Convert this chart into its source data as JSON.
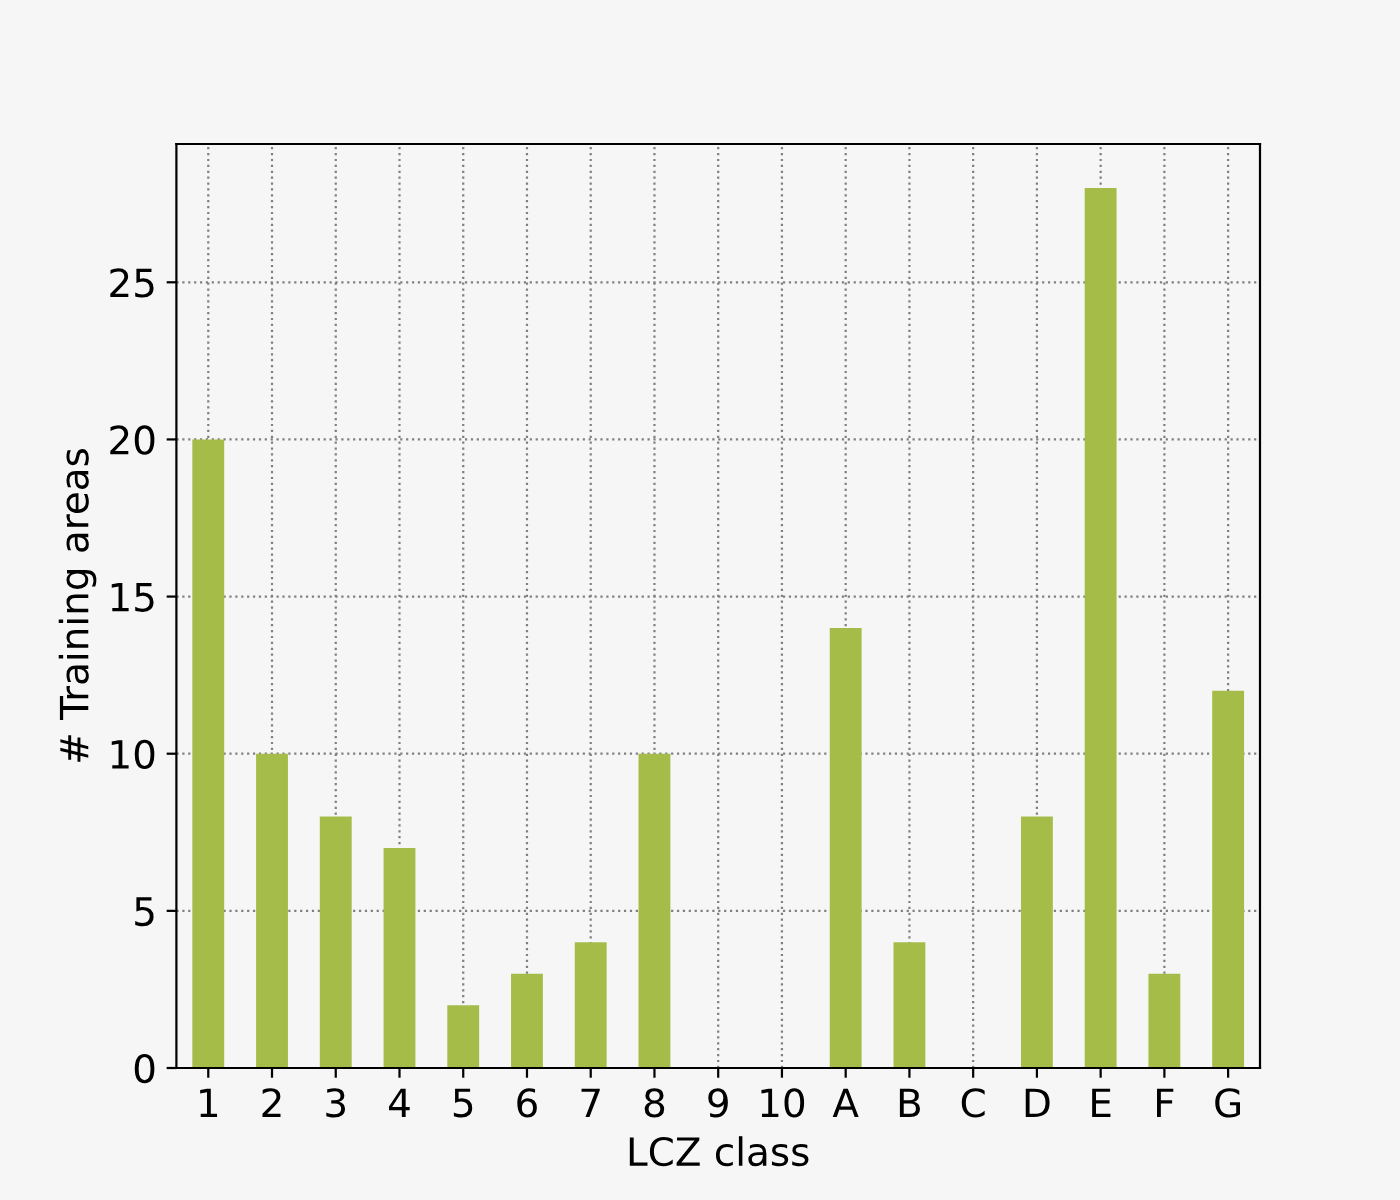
{
  "chart_data": {
    "type": "bar",
    "xlabel": "LCZ class",
    "ylabel": "# Training areas",
    "categories": [
      "1",
      "2",
      "3",
      "4",
      "5",
      "6",
      "7",
      "8",
      "9",
      "10",
      "A",
      "B",
      "C",
      "D",
      "E",
      "F",
      "G"
    ],
    "values": [
      20,
      10,
      8,
      7,
      2,
      3,
      4,
      10,
      0,
      0,
      14,
      4,
      0,
      8,
      28,
      3,
      12
    ],
    "color": "#a5bd48",
    "ylim": [
      0,
      29.4
    ],
    "yticks": [
      0,
      5,
      10,
      15,
      20,
      25
    ],
    "grid": true
  }
}
